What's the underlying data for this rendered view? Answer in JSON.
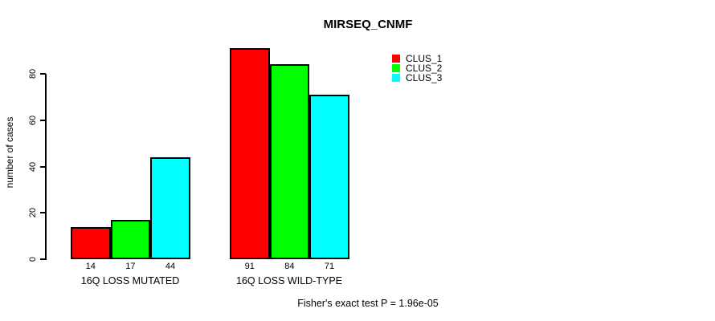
{
  "chart_data": {
    "type": "bar",
    "title": "MIRSEQ_CNMF",
    "ylabel": "number of cases",
    "xlabel": "",
    "categories": [
      "16Q LOSS MUTATED",
      "16Q LOSS WILD-TYPE"
    ],
    "series": [
      {
        "name": "CLUS_1",
        "color": "#ff0000",
        "values": [
          14,
          91
        ]
      },
      {
        "name": "CLUS_2",
        "color": "#00ff00",
        "values": [
          17,
          84
        ]
      },
      {
        "name": "CLUS_3",
        "color": "#00ffff",
        "values": [
          44,
          71
        ]
      }
    ],
    "yticks": [
      0,
      20,
      40,
      60,
      80
    ],
    "ylim": [
      0,
      91
    ],
    "bar_value_labels": [
      [
        14,
        17,
        44
      ],
      [
        91,
        84,
        71
      ]
    ],
    "legend_position": "top-right",
    "grid": false,
    "bar_border_color": "#000000",
    "annotation": "Fisher's exact test P = 1.96e-05"
  }
}
